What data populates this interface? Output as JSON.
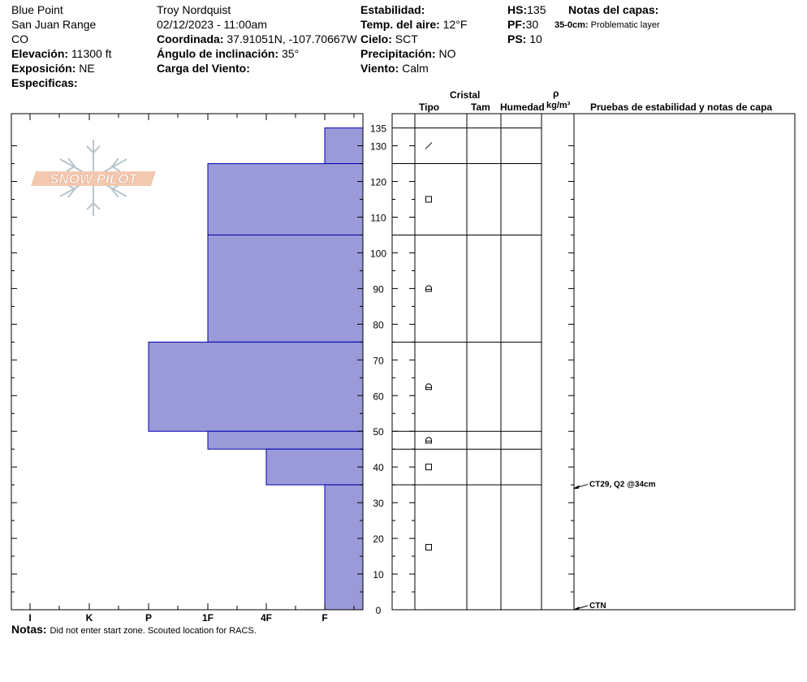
{
  "header": {
    "location": "Blue Point",
    "range": "San Juan Range",
    "state": "CO",
    "elevation_label": "Elevación:",
    "elevation_value": "11300 ft",
    "exposure_label": "Exposición:",
    "exposure_value": "NE",
    "specifics_label": "Especificas:",
    "observer": "Troy  Nordquist",
    "datetime": "02/12/2023 - 11:00am",
    "coord_label": "Coordinada:",
    "coord_value": "37.91051N, -107.70667W",
    "slope_label": "Ángulo de inclinación:",
    "slope_value": "35°",
    "wind_load_label": "Carga del Viento:",
    "stability_label": "Estabilidad:",
    "air_temp_label": "Temp. del aire:",
    "air_temp_value": "12°F",
    "sky_label": "Cielo:",
    "sky_value": "SCT",
    "precip_label": "Precipitación:",
    "precip_value": "NO",
    "wind_label": "Viento:",
    "wind_value": "Calm",
    "hs_label": "HS:",
    "hs_value": "135",
    "pf_label": "PF:",
    "pf_value": "30",
    "ps_label": "PS:",
    "ps_value": "10",
    "layer_notes_label": "Notas del capas:",
    "layer_note_depth": "35-0cm:",
    "layer_note_text": "Problematic layer"
  },
  "logo": {
    "text": "SNOW PILOT"
  },
  "table": {
    "crystal_label": "Cristal",
    "type_label": "Tipo",
    "size_label": "Tam",
    "moisture_label": "Humedad",
    "rho_label": "ρ",
    "density_label": "kg/m³",
    "tests_label": "Pruebas de estabilidad y notas de capa"
  },
  "notes": {
    "label": "Notas:",
    "text": "Did not enter start zone.  Scouted location for RACS."
  },
  "colors": {
    "layer_fill": "#9a9ad8",
    "layer_edge": "#0000b0"
  },
  "chart_data": {
    "type": "bar",
    "orientation": "horizontal",
    "y_axis": {
      "range": [
        0,
        135
      ],
      "tick_labels": [
        "0",
        "10",
        "20",
        "30",
        "40",
        "50",
        "60",
        "70",
        "80",
        "90",
        "100",
        "110",
        "120",
        "130",
        "135"
      ]
    },
    "x_axis": {
      "categories": [
        "I",
        "K",
        "P",
        "1F",
        "4F",
        "F"
      ]
    },
    "layers": [
      {
        "top": 135,
        "bottom": 125,
        "hardness": "F",
        "hardness_index": 5,
        "crystal": "decomposing"
      },
      {
        "top": 125,
        "bottom": 105,
        "hardness": "1F",
        "hardness_index": 3,
        "crystal": "faceted"
      },
      {
        "top": 105,
        "bottom": 75,
        "hardness": "1F",
        "hardness_index": 3,
        "crystal": "rounding-faceted"
      },
      {
        "top": 75,
        "bottom": 50,
        "hardness": "P",
        "hardness_index": 2,
        "crystal": "rounding-faceted"
      },
      {
        "top": 50,
        "bottom": 45,
        "hardness": "1F",
        "hardness_index": 3,
        "crystal": "rounding-faceted"
      },
      {
        "top": 45,
        "bottom": 35,
        "hardness": "4F",
        "hardness_index": 4,
        "crystal": "faceted"
      },
      {
        "top": 35,
        "bottom": 0,
        "hardness": "F",
        "hardness_index": 5,
        "crystal": "faceted"
      }
    ],
    "tests": [
      {
        "depth": 34,
        "label": "CT29, Q2 @34cm"
      },
      {
        "depth": 0,
        "label": "CTN"
      }
    ]
  }
}
